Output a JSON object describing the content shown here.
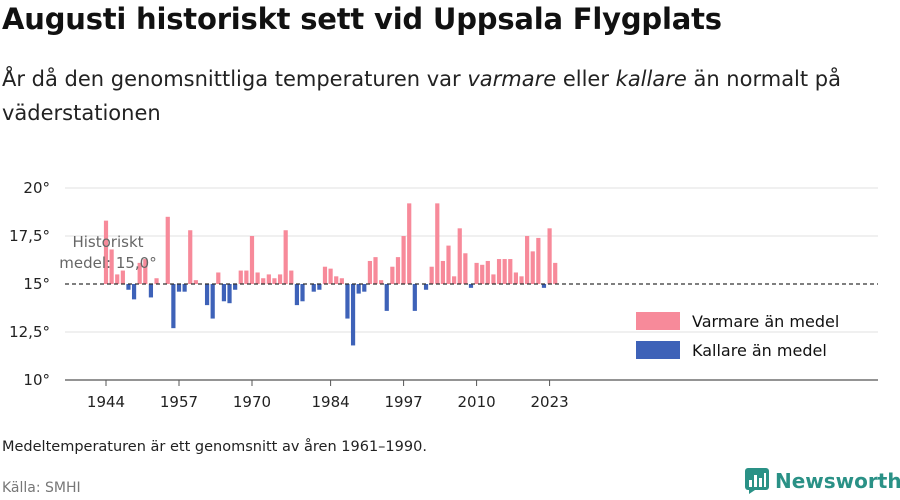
{
  "title": "Augusti historiskt sett vid Uppsala Flygplats",
  "subtitle": {
    "part1": "År då den genomsnittliga temperaturen var ",
    "warmer": "varmare",
    "part2": " eller ",
    "colder": "kallare",
    "part3": " än normalt på väderstationen"
  },
  "note": "Medeltemperaturen är ett genomsnitt av åren 1961–1990.",
  "source": "Källa: SMHI",
  "brand": "Newsworthy",
  "colors": {
    "warm": "#f78a9a",
    "cold": "#3e62b8",
    "baseline": "#333333",
    "grid": "#e2e2e2",
    "brand": "#2a9186"
  },
  "chart_data": {
    "type": "bar",
    "baseline": 15.0,
    "baseline_label_line1": "Historiskt",
    "baseline_label_line2": "medel: 15,0°",
    "ylim": [
      10,
      20
    ],
    "y_ticks": [
      10,
      12.5,
      15,
      17.5,
      20
    ],
    "y_tick_labels": [
      "10°",
      "12,5°",
      "15°",
      "17,5°",
      "20°"
    ],
    "x_ticks": [
      1944,
      1957,
      1970,
      1984,
      1997,
      2010,
      2023
    ],
    "x_tick_labels": [
      "1944",
      "1957",
      "1970",
      "1984",
      "1997",
      "2010",
      "2023"
    ],
    "legend": [
      "Varmare än medel",
      "Kallare än medel"
    ],
    "years": [
      1944,
      1945,
      1946,
      1947,
      1948,
      1949,
      1950,
      1951,
      1952,
      1953,
      1954,
      1955,
      1956,
      1957,
      1958,
      1959,
      1960,
      1961,
      1962,
      1963,
      1964,
      1965,
      1966,
      1967,
      1968,
      1969,
      1970,
      1971,
      1972,
      1973,
      1974,
      1975,
      1976,
      1977,
      1978,
      1979,
      1980,
      1981,
      1982,
      1983,
      1984,
      1985,
      1986,
      1987,
      1988,
      1989,
      1990,
      1991,
      1992,
      1993,
      1994,
      1995,
      1996,
      1997,
      1998,
      1999,
      2000,
      2001,
      2002,
      2003,
      2004,
      2005,
      2006,
      2007,
      2008,
      2009,
      2010,
      2011,
      2012,
      2013,
      2014,
      2015,
      2016,
      2017,
      2018,
      2019,
      2020,
      2021,
      2022,
      2023,
      2024
    ],
    "values": [
      18.3,
      16.8,
      15.5,
      15.7,
      14.7,
      14.2,
      16.1,
      16.3,
      14.3,
      15.3,
      15.0,
      18.5,
      12.7,
      14.6,
      14.6,
      17.8,
      15.2,
      15.0,
      13.9,
      13.2,
      15.6,
      14.1,
      14.0,
      14.7,
      15.7,
      15.7,
      17.5,
      15.6,
      15.3,
      15.5,
      15.3,
      15.5,
      17.8,
      15.7,
      13.9,
      14.1,
      15.0,
      14.6,
      14.7,
      15.9,
      15.8,
      15.4,
      15.3,
      13.2,
      11.8,
      14.5,
      14.6,
      16.2,
      16.4,
      15.2,
      13.6,
      15.9,
      16.4,
      17.5,
      19.2,
      13.6,
      15.0,
      14.7,
      15.9,
      19.2,
      16.2,
      17.0,
      15.4,
      17.9,
      16.6,
      14.8,
      16.1,
      16.0,
      16.2,
      15.5,
      16.3,
      16.3,
      16.3,
      15.6,
      15.4,
      17.5,
      16.7,
      17.4,
      14.8,
      17.9,
      16.1
    ]
  }
}
